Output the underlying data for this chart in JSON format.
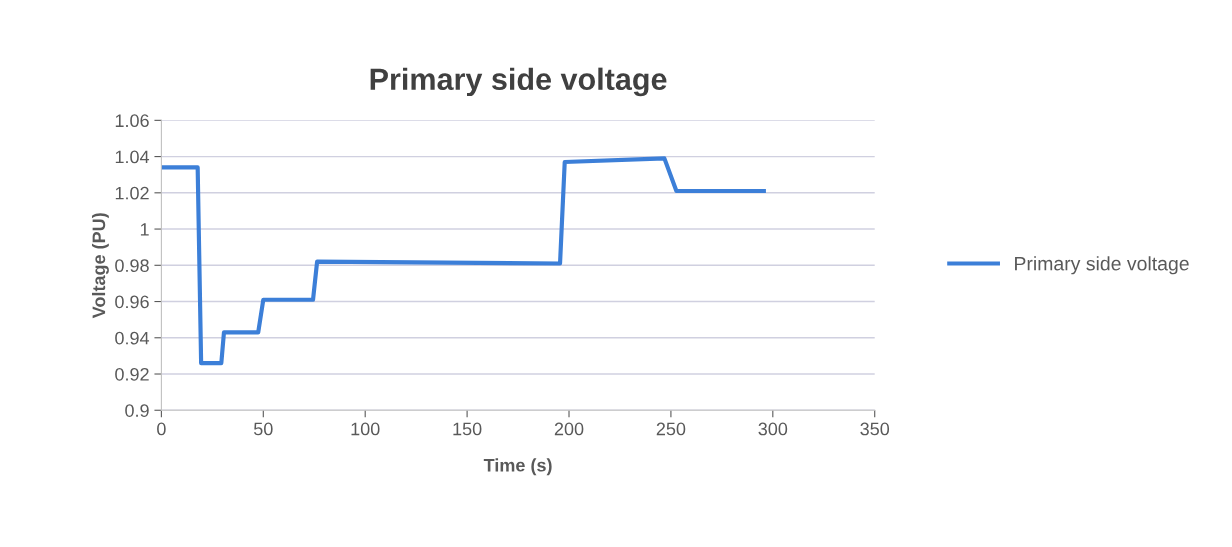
{
  "chart_data": {
    "type": "line",
    "title": "Primary side voltage",
    "xlabel": "Time (s)",
    "ylabel": "Voltage (PU)",
    "x": [
      0,
      17.8,
      19.5,
      29.4,
      30.7,
      47.5,
      50,
      74.4,
      76.4,
      195.6,
      197.9,
      246.8,
      252.7,
      295.6
    ],
    "series": [
      {
        "name": "Primary side voltage",
        "color": "#3c7fd8",
        "values": [
          1.034,
          1.034,
          0.926,
          0.926,
          0.943,
          0.943,
          0.961,
          0.961,
          0.982,
          0.981,
          1.037,
          1.039,
          1.021,
          1.021
        ]
      }
    ],
    "xlim": [
      0,
      350
    ],
    "xticks": [
      0,
      50,
      100,
      150,
      200,
      250,
      300,
      350
    ],
    "ylim": [
      0.9,
      1.06
    ],
    "yticks": [
      {
        "value": 0.9,
        "label": "0.9"
      },
      {
        "value": 0.92,
        "label": "0.92"
      },
      {
        "value": 0.94,
        "label": "0.94"
      },
      {
        "value": 0.96,
        "label": "0.96"
      },
      {
        "value": 0.98,
        "label": "0.98"
      },
      {
        "value": 1,
        "label": "1"
      },
      {
        "value": 1.02,
        "label": "1.02"
      },
      {
        "value": 1.04,
        "label": "1.04"
      },
      {
        "value": 1.06,
        "label": "1.06"
      }
    ],
    "grid": "y",
    "legend": "right",
    "marker": "none",
    "line_style": "solid"
  }
}
